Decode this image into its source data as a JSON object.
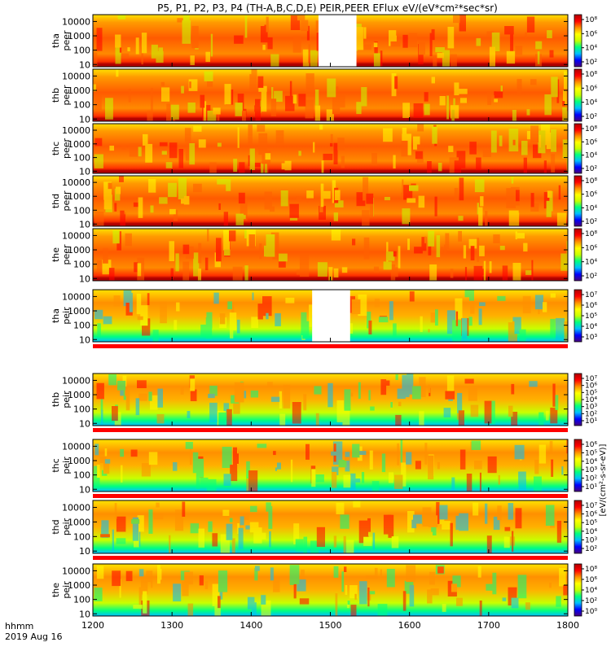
{
  "chart_data": {
    "type": "heatmap",
    "title": "P5, P1, P2, P3, P4 (TH-A,B,C,D,E) PEIR,PEER EFlux eV/(eV*cm²*sec*sr)",
    "x_axis": {
      "label_line1": "hhmm",
      "label_line2": "2019 Aug 16",
      "range": [
        1200,
        1800
      ],
      "ticks": [
        "1200",
        "1300",
        "1400",
        "1500",
        "1600",
        "1700",
        "1800"
      ]
    },
    "y_axis": {
      "scale": "log",
      "range": [
        7,
        30000
      ],
      "ticks": [
        10,
        100,
        1000,
        10000
      ],
      "tick_labels": [
        "10",
        "100",
        "1000",
        "10000"
      ]
    },
    "colorbar": {
      "scale": "log",
      "units": "[eV/(cm²-s-sr-eV)]",
      "colormap": [
        "#4a007a",
        "#0000ff",
        "#00bfff",
        "#00ff80",
        "#c8ff00",
        "#ffff00",
        "#ff9000",
        "#ff0000",
        "#b00000"
      ]
    },
    "panels": [
      {
        "id": "tha-peer",
        "probe": "tha",
        "species": "peer",
        "colorbar_ticks": [
          "10⁸",
          "10⁶",
          "10⁴",
          "10²"
        ],
        "data_gaps": [
          [
            1485,
            1533
          ]
        ]
      },
      {
        "id": "thb-peer",
        "probe": "thb",
        "species": "peer",
        "colorbar_ticks": [
          "10⁸",
          "10⁶",
          "10⁴",
          "10²"
        ],
        "data_gaps": []
      },
      {
        "id": "thc-peer",
        "probe": "thc",
        "species": "peer",
        "colorbar_ticks": [
          "10⁸",
          "10⁶",
          "10⁴",
          "10²"
        ],
        "data_gaps": []
      },
      {
        "id": "thd-peer",
        "probe": "thd",
        "species": "peer",
        "colorbar_ticks": [
          "10⁸",
          "10⁶",
          "10⁴",
          "10²"
        ],
        "data_gaps": []
      },
      {
        "id": "the-peer",
        "probe": "the",
        "species": "peer",
        "colorbar_ticks": [
          "10⁸",
          "10⁶",
          "10⁴",
          "10²"
        ],
        "data_gaps": []
      },
      {
        "id": "tha-peir",
        "probe": "tha",
        "species": "peir",
        "colorbar_ticks": [
          "10⁷",
          "10⁶",
          "10⁵",
          "10⁴",
          "10³"
        ],
        "data_gaps": [
          [
            1477,
            1525
          ]
        ]
      },
      {
        "id": "thb-peir",
        "probe": "thb",
        "species": "peir",
        "colorbar_ticks": [
          "10⁷",
          "10⁶",
          "10⁵",
          "10⁴",
          "10³",
          "10²",
          "10¹"
        ],
        "data_gaps": []
      },
      {
        "id": "thc-peir",
        "probe": "thc",
        "species": "peir",
        "colorbar_ticks": [
          "10⁶",
          "10⁵",
          "10⁴",
          "10³",
          "10²",
          "10¹"
        ],
        "data_gaps": []
      },
      {
        "id": "thd-peir",
        "probe": "thd",
        "species": "peir",
        "colorbar_ticks": [
          "10⁷",
          "10⁶",
          "10⁵",
          "10⁴",
          "10³",
          "10²"
        ],
        "data_gaps": []
      },
      {
        "id": "the-peir",
        "probe": "the",
        "species": "peir",
        "colorbar_ticks": [
          "10⁸",
          "10⁶",
          "10⁴",
          "10²",
          "10⁰"
        ],
        "data_gaps": []
      }
    ]
  }
}
